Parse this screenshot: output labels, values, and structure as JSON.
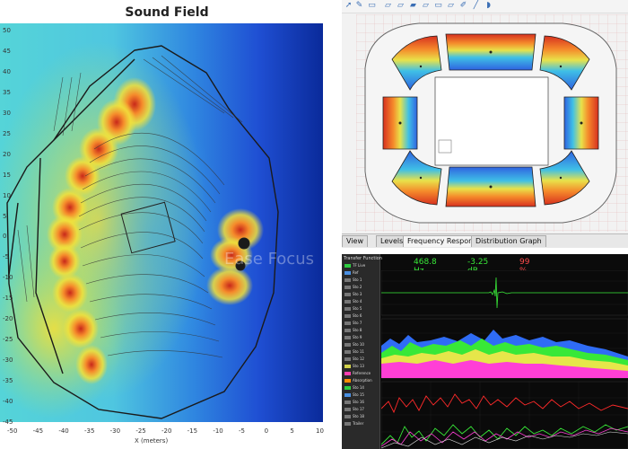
{
  "sound_field": {
    "title": "Sound Field",
    "x_axis_label": "X (meters)",
    "x_ticks": [
      "-50",
      "-45",
      "-40",
      "-35",
      "-30",
      "-25",
      "-20",
      "-15",
      "-10",
      "-5",
      "0",
      "5",
      "10"
    ],
    "y_ticks": [
      "50",
      "45",
      "40",
      "35",
      "30",
      "25",
      "20",
      "15",
      "10",
      "5",
      "0",
      "-5",
      "-10",
      "-15",
      "-20",
      "-25",
      "-30",
      "-35",
      "-40",
      "-45"
    ],
    "watermark": "Ease Focus",
    "colors": {
      "red": "#d7301f",
      "orange": "#f58a2b",
      "yellow": "#f2e03a",
      "cyan": "#46d3e6",
      "blue": "#1f4fd3",
      "dark_blue": "#0a2a9a"
    }
  },
  "stadium_editor": {
    "toolbar_icons": [
      "arrow-icon",
      "pen-icon",
      "square-icon",
      "shape-icon",
      "shape-icon",
      "shape-icon",
      "shape-icon",
      "shape-icon",
      "shape-icon",
      "pencil-icon",
      "line-icon",
      "speaker-icon"
    ],
    "tabs": [
      "View",
      "Levels",
      "Frequency Response",
      "Distribution Graph"
    ]
  },
  "analyzer": {
    "window_title": "Transfer Function",
    "frequency": "468.8 Hz",
    "gain": "-3.25 dB",
    "coherence": "99 %",
    "tracks": [
      {
        "name": "TF Live",
        "color": "#2ecc40"
      },
      {
        "name": "Ref",
        "color": "#4a90e2"
      },
      {
        "name": "Sto 1",
        "color": "#777777"
      },
      {
        "name": "Sto 2",
        "color": "#777777"
      },
      {
        "name": "Sto 3",
        "color": "#777777"
      },
      {
        "name": "Sto 4",
        "color": "#777777"
      },
      {
        "name": "Sto 5",
        "color": "#777777"
      },
      {
        "name": "Sto 6",
        "color": "#777777"
      },
      {
        "name": "Sto 7",
        "color": "#777777"
      },
      {
        "name": "Sto 8",
        "color": "#777777"
      },
      {
        "name": "Sto 9",
        "color": "#777777"
      },
      {
        "name": "Sto 10",
        "color": "#777777"
      },
      {
        "name": "Sto 11",
        "color": "#777777"
      },
      {
        "name": "Sto 12",
        "color": "#777777"
      },
      {
        "name": "Sto 13",
        "color": "#d2d24a"
      },
      {
        "name": "Reference",
        "color": "#ff3fb0"
      },
      {
        "name": "Absorption",
        "color": "#ff8c00"
      },
      {
        "name": "Sto 14",
        "color": "#2ecc40"
      },
      {
        "name": "Sto 15",
        "color": "#4a90e2"
      },
      {
        "name": "Sto 16",
        "color": "#777777"
      },
      {
        "name": "Sto 17",
        "color": "#777777"
      },
      {
        "name": "Sto 18",
        "color": "#777777"
      },
      {
        "name": "Trailer",
        "color": "#777777"
      }
    ],
    "colors": {
      "green": "#38e838",
      "red": "#ff2a2a",
      "magenta": "#ff3fd6",
      "blue": "#2f6cf5",
      "white": "#ffffff"
    }
  }
}
